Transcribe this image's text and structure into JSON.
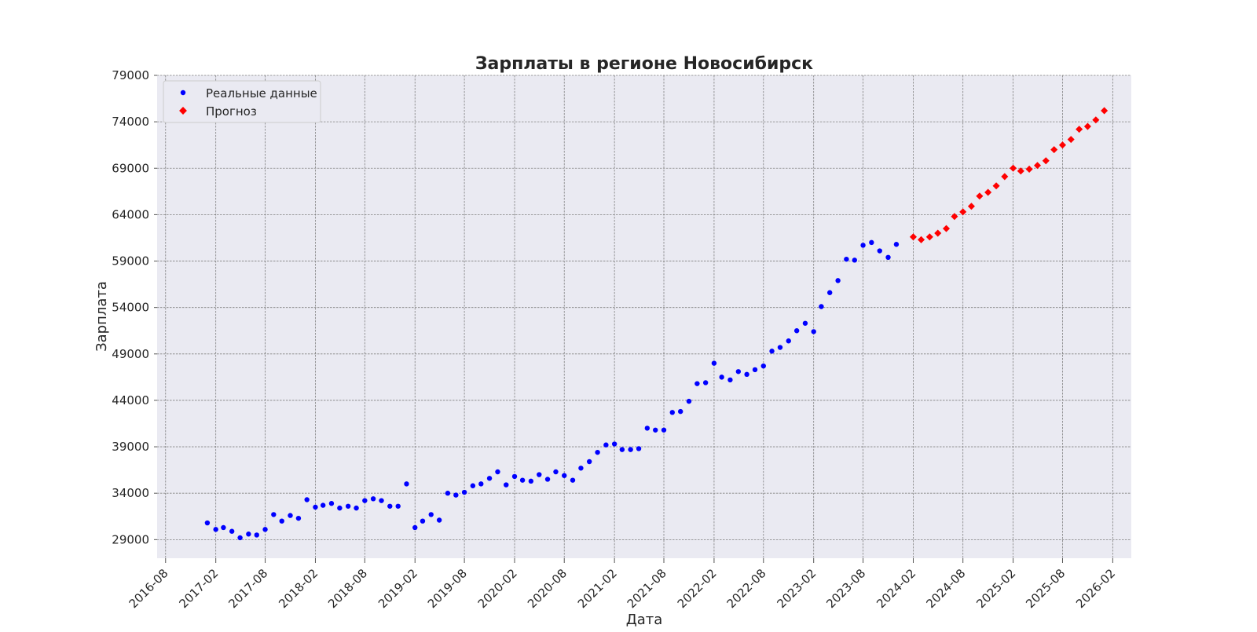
{
  "chart_data": {
    "type": "scatter",
    "title": "Зарплаты в регионе Новосибирск",
    "xlabel": "Дата",
    "ylabel": "Зарплата",
    "xlim": [
      "2016-07-01",
      "2026-04-10"
    ],
    "ylim": [
      27000,
      79000
    ],
    "yticks": [
      29000,
      34000,
      39000,
      44000,
      49000,
      54000,
      59000,
      64000,
      69000,
      74000,
      79000
    ],
    "xticks": [
      "2016-08",
      "2017-02",
      "2017-08",
      "2018-02",
      "2018-08",
      "2019-02",
      "2019-08",
      "2020-02",
      "2020-08",
      "2021-02",
      "2021-08",
      "2022-02",
      "2022-08",
      "2023-02",
      "2023-08",
      "2024-02",
      "2024-08",
      "2025-02",
      "2025-08",
      "2026-02"
    ],
    "grid": true,
    "legend_position": "top-left",
    "colors": {
      "background": "#eaeaf2",
      "grid": "#808080",
      "actual": "#0000ff",
      "forecast": "#ff0000"
    },
    "series": [
      {
        "name": "Реальные данные",
        "marker": "circle",
        "color": "#0000ff",
        "points": [
          [
            "2017-01",
            30800
          ],
          [
            "2017-02",
            30100
          ],
          [
            "2017-03",
            30300
          ],
          [
            "2017-04",
            29900
          ],
          [
            "2017-05",
            29200
          ],
          [
            "2017-06",
            29600
          ],
          [
            "2017-07",
            29500
          ],
          [
            "2017-08",
            30100
          ],
          [
            "2017-09",
            31700
          ],
          [
            "2017-10",
            31000
          ],
          [
            "2017-11",
            31600
          ],
          [
            "2017-12",
            31300
          ],
          [
            "2018-01",
            33300
          ],
          [
            "2018-02",
            32500
          ],
          [
            "2018-03",
            32700
          ],
          [
            "2018-04",
            32900
          ],
          [
            "2018-05",
            32400
          ],
          [
            "2018-06",
            32600
          ],
          [
            "2018-07",
            32400
          ],
          [
            "2018-08",
            33200
          ],
          [
            "2018-09",
            33400
          ],
          [
            "2018-10",
            33200
          ],
          [
            "2018-11",
            32600
          ],
          [
            "2018-12",
            32600
          ],
          [
            "2019-01",
            35000
          ],
          [
            "2019-02",
            30300
          ],
          [
            "2019-03",
            31000
          ],
          [
            "2019-04",
            31700
          ],
          [
            "2019-05",
            31100
          ],
          [
            "2019-06",
            34000
          ],
          [
            "2019-07",
            33800
          ],
          [
            "2019-08",
            34100
          ],
          [
            "2019-09",
            34800
          ],
          [
            "2019-10",
            35000
          ],
          [
            "2019-11",
            35600
          ],
          [
            "2019-12",
            36300
          ],
          [
            "2020-01",
            34900
          ],
          [
            "2020-02",
            35800
          ],
          [
            "2020-03",
            35400
          ],
          [
            "2020-04",
            35300
          ],
          [
            "2020-05",
            36000
          ],
          [
            "2020-06",
            35500
          ],
          [
            "2020-07",
            36300
          ],
          [
            "2020-08",
            35900
          ],
          [
            "2020-09",
            35400
          ],
          [
            "2020-10",
            36700
          ],
          [
            "2020-11",
            37400
          ],
          [
            "2020-12",
            38400
          ],
          [
            "2021-01",
            39200
          ],
          [
            "2021-02",
            39300
          ],
          [
            "2021-03",
            38700
          ],
          [
            "2021-04",
            38700
          ],
          [
            "2021-05",
            38800
          ],
          [
            "2021-06",
            41000
          ],
          [
            "2021-07",
            40800
          ],
          [
            "2021-08",
            40800
          ],
          [
            "2021-09",
            42700
          ],
          [
            "2021-10",
            42800
          ],
          [
            "2021-11",
            43900
          ],
          [
            "2021-12",
            45800
          ],
          [
            "2022-01",
            45900
          ],
          [
            "2022-02",
            48000
          ],
          [
            "2022-03",
            46500
          ],
          [
            "2022-04",
            46200
          ],
          [
            "2022-05",
            47100
          ],
          [
            "2022-06",
            46800
          ],
          [
            "2022-07",
            47300
          ],
          [
            "2022-08",
            47700
          ],
          [
            "2022-09",
            49300
          ],
          [
            "2022-10",
            49700
          ],
          [
            "2022-11",
            50400
          ],
          [
            "2022-12",
            51500
          ],
          [
            "2023-01",
            52300
          ],
          [
            "2023-02",
            51400
          ],
          [
            "2023-03",
            54100
          ],
          [
            "2023-04",
            55600
          ],
          [
            "2023-05",
            56900
          ],
          [
            "2023-06",
            59200
          ],
          [
            "2023-07",
            59100
          ],
          [
            "2023-08",
            60700
          ],
          [
            "2023-09",
            61000
          ],
          [
            "2023-10",
            60100
          ],
          [
            "2023-11",
            59400
          ],
          [
            "2023-12",
            60800
          ]
        ]
      },
      {
        "name": "Прогноз",
        "marker": "diamond",
        "color": "#ff0000",
        "points": [
          [
            "2024-02",
            61600
          ],
          [
            "2024-03",
            61300
          ],
          [
            "2024-04",
            61600
          ],
          [
            "2024-05",
            62000
          ],
          [
            "2024-06",
            62500
          ],
          [
            "2024-07",
            63800
          ],
          [
            "2024-08",
            64300
          ],
          [
            "2024-09",
            64900
          ],
          [
            "2024-10",
            66000
          ],
          [
            "2024-11",
            66400
          ],
          [
            "2024-12",
            67100
          ],
          [
            "2025-01",
            68100
          ],
          [
            "2025-02",
            69000
          ],
          [
            "2025-03",
            68700
          ],
          [
            "2025-04",
            68900
          ],
          [
            "2025-05",
            69300
          ],
          [
            "2025-06",
            69800
          ],
          [
            "2025-07",
            71000
          ],
          [
            "2025-08",
            71500
          ],
          [
            "2025-09",
            72100
          ],
          [
            "2025-10",
            73200
          ],
          [
            "2025-11",
            73500
          ],
          [
            "2025-12",
            74200
          ],
          [
            "2026-01",
            75200
          ]
        ]
      }
    ]
  }
}
